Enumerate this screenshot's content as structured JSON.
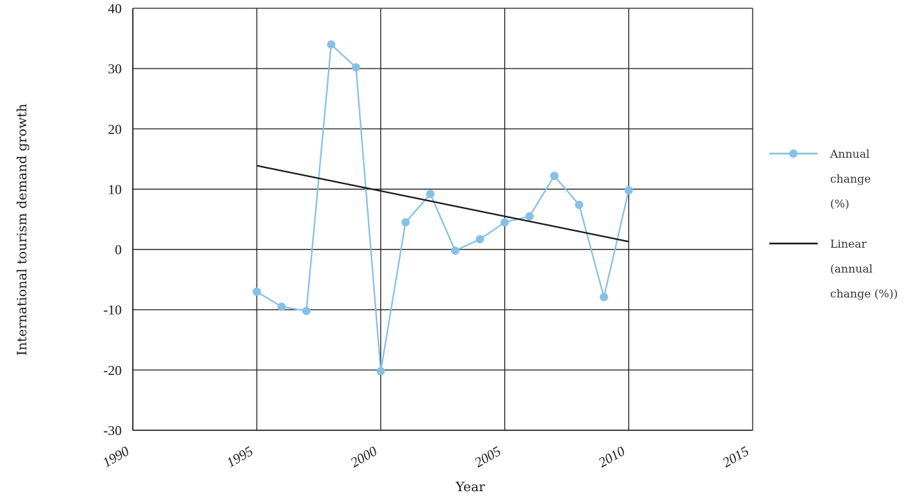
{
  "chart_data": {
    "type": "line",
    "title": "",
    "xlabel": "Year",
    "ylabel": "International tourism demand growth",
    "xlim": [
      1990,
      2015
    ],
    "ylim": [
      -30,
      40
    ],
    "x_ticks": [
      "1990",
      "1995",
      "2000",
      "2005",
      "2010",
      "2015"
    ],
    "y_ticks": [
      "-30",
      "-20",
      "-10",
      "0",
      "10",
      "20",
      "30",
      "40"
    ],
    "grid": true,
    "legend_position": "right",
    "series": [
      {
        "name": "Annual change (%)",
        "name_lines": [
          "Annual",
          "change",
          "(%)"
        ],
        "color": "#85c1e6",
        "marker": "circle",
        "x": [
          1995,
          1996,
          1997,
          1998,
          1999,
          2000,
          2001,
          2002,
          2003,
          2004,
          2005,
          2006,
          2007,
          2008,
          2009,
          2010
        ],
        "y": [
          -7.0,
          -9.5,
          -10.2,
          34.0,
          30.2,
          -20.2,
          4.5,
          9.2,
          -0.2,
          1.7,
          4.5,
          5.5,
          12.2,
          7.4,
          -7.9,
          9.8
        ]
      },
      {
        "name": "Linear (annual change (%))",
        "name_lines": [
          "Linear",
          "(annual",
          "change (%))"
        ],
        "color": "#1a1a1a",
        "marker": "none",
        "x": [
          1995,
          2010
        ],
        "y": [
          13.9,
          1.3
        ]
      }
    ]
  }
}
